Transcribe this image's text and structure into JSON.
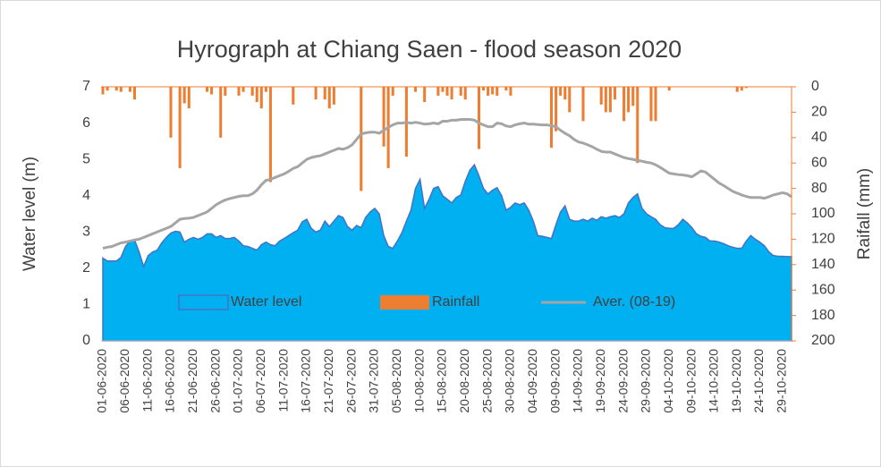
{
  "chart_data": {
    "type": "combo",
    "title": "Hyrograph at Chiang Saen - flood season 2020",
    "ylabel": "Water level (m)",
    "y2label": "Raifall (mm)",
    "categories": [
      "01-06-2020",
      null,
      null,
      null,
      null,
      "06-06-2020",
      null,
      null,
      null,
      null,
      "11-06-2020",
      null,
      null,
      null,
      null,
      "16-06-2020",
      null,
      null,
      null,
      null,
      "21-06-2020",
      null,
      null,
      null,
      null,
      "26-06-2020",
      null,
      null,
      null,
      null,
      "01-07-2020",
      null,
      null,
      null,
      null,
      "06-07-2020",
      null,
      null,
      null,
      null,
      "11-07-2020",
      null,
      null,
      null,
      null,
      "16-07-2020",
      null,
      null,
      null,
      null,
      "21-07-2020",
      null,
      null,
      null,
      null,
      "26-07-2020",
      null,
      null,
      null,
      null,
      "31-07-2020",
      null,
      null,
      null,
      null,
      "05-08-2020",
      null,
      null,
      null,
      null,
      "10-08-2020",
      null,
      null,
      null,
      null,
      "15-08-2020",
      null,
      null,
      null,
      null,
      "20-08-2020",
      null,
      null,
      null,
      null,
      "25-08-2020",
      null,
      null,
      null,
      null,
      "30-08-2020",
      null,
      null,
      null,
      null,
      "04-09-2020",
      null,
      null,
      null,
      null,
      "09-09-2020",
      null,
      null,
      null,
      null,
      "14-09-2020",
      null,
      null,
      null,
      null,
      "19-09-2020",
      null,
      null,
      null,
      null,
      "24-09-2020",
      null,
      null,
      null,
      null,
      "29-09-2020",
      null,
      null,
      null,
      null,
      "04-10-2020",
      null,
      null,
      null,
      null,
      "09-10-2020",
      null,
      null,
      null,
      null,
      "14-10-2020",
      null,
      null,
      null,
      null,
      "19-10-2020",
      null,
      null,
      null,
      null,
      "24-10-2020",
      null,
      null,
      null,
      null,
      "29-10-2020",
      null,
      null
    ],
    "series": [
      {
        "name": "Water level",
        "kind": "area",
        "color": "#00b0f0",
        "edgecolor": "#4472c4",
        "values": [
          2.28,
          2.2,
          2.2,
          2.2,
          2.3,
          2.6,
          2.75,
          2.78,
          2.45,
          2.05,
          2.35,
          2.45,
          2.5,
          2.7,
          2.85,
          2.97,
          3.02,
          3.0,
          2.72,
          2.8,
          2.85,
          2.8,
          2.85,
          2.95,
          2.95,
          2.85,
          2.9,
          2.82,
          2.82,
          2.85,
          2.75,
          2.62,
          2.6,
          2.55,
          2.5,
          2.65,
          2.72,
          2.65,
          2.62,
          2.75,
          2.82,
          2.9,
          2.98,
          3.05,
          3.28,
          3.35,
          3.1,
          3.0,
          3.05,
          3.3,
          3.15,
          3.3,
          3.45,
          3.4,
          3.15,
          3.05,
          3.18,
          3.12,
          3.4,
          3.55,
          3.65,
          3.5,
          2.9,
          2.6,
          2.55,
          2.75,
          2.98,
          3.3,
          3.6,
          4.2,
          4.45,
          3.65,
          3.9,
          4.2,
          4.25,
          4.0,
          3.9,
          3.8,
          3.95,
          4.02,
          4.4,
          4.7,
          4.85,
          4.55,
          4.2,
          4.05,
          4.15,
          4.22,
          4.0,
          3.6,
          3.68,
          3.8,
          3.75,
          3.8,
          3.6,
          3.3,
          2.9,
          2.88,
          2.85,
          2.82,
          3.2,
          3.55,
          3.72,
          3.35,
          3.3,
          3.3,
          3.35,
          3.3,
          3.38,
          3.32,
          3.42,
          3.38,
          3.42,
          3.45,
          3.4,
          3.5,
          3.8,
          3.95,
          4.05,
          3.65,
          3.5,
          3.42,
          3.35,
          3.2,
          3.12,
          3.1,
          3.1,
          3.2,
          3.35,
          3.25,
          3.12,
          2.95,
          2.88,
          2.85,
          2.75,
          2.75,
          2.72,
          2.68,
          2.62,
          2.58,
          2.55,
          2.55,
          2.75,
          2.9,
          2.8,
          2.72,
          2.62,
          2.45,
          2.35,
          2.33,
          2.33,
          2.32,
          2.32
        ]
      },
      {
        "name": "Rainfall",
        "kind": "bar",
        "axis": "y2",
        "color": "#ed7d31",
        "values": [
          6,
          3,
          0,
          3,
          4,
          0,
          4,
          10,
          0,
          0,
          0,
          0,
          0,
          0,
          0,
          40,
          0,
          64,
          13,
          17,
          0,
          0,
          0,
          4,
          6,
          0,
          40,
          7,
          0,
          0,
          7,
          4,
          0,
          7,
          12,
          17,
          4,
          75,
          0,
          0,
          0,
          0,
          14,
          0,
          0,
          0,
          0,
          10,
          0,
          10,
          17,
          14,
          0,
          0,
          0,
          0,
          0,
          82,
          0,
          0,
          0,
          0,
          47,
          64,
          7,
          0,
          0,
          55,
          0,
          4,
          0,
          12,
          0,
          0,
          7,
          4,
          7,
          10,
          0,
          7,
          10,
          0,
          0,
          49,
          3,
          7,
          6,
          7,
          0,
          3,
          7,
          0,
          0,
          0,
          0,
          0,
          0,
          0,
          0,
          48,
          35,
          7,
          10,
          20,
          0,
          0,
          27,
          0,
          0,
          0,
          14,
          20,
          20,
          10,
          0,
          27,
          20,
          15,
          60,
          0,
          0,
          27,
          27,
          0,
          0,
          3,
          0,
          0,
          0,
          0,
          0,
          0,
          0,
          0,
          0,
          0,
          0,
          0,
          0,
          0,
          4,
          3,
          1,
          0,
          0,
          0,
          0,
          0,
          0,
          0,
          0,
          0,
          0
        ]
      },
      {
        "name": "Aver. (08-19)",
        "kind": "line",
        "color": "#a5a5a5",
        "values": [
          2.55,
          2.58,
          2.6,
          2.65,
          2.7,
          2.72,
          2.75,
          2.78,
          2.8,
          2.85,
          2.9,
          2.95,
          3.0,
          3.05,
          3.1,
          3.15,
          3.25,
          3.35,
          3.37,
          3.38,
          3.4,
          3.45,
          3.5,
          3.55,
          3.65,
          3.75,
          3.82,
          3.88,
          3.92,
          3.95,
          3.98,
          4.0,
          4.0,
          4.05,
          4.15,
          4.3,
          4.42,
          4.45,
          4.5,
          4.55,
          4.6,
          4.67,
          4.75,
          4.8,
          4.9,
          5.0,
          5.05,
          5.08,
          5.1,
          5.15,
          5.2,
          5.25,
          5.3,
          5.28,
          5.32,
          5.4,
          5.55,
          5.7,
          5.73,
          5.75,
          5.75,
          5.72,
          5.8,
          5.88,
          5.95,
          6.0,
          6.0,
          6.02,
          6.0,
          6.02,
          6.0,
          5.97,
          5.98,
          6.0,
          5.98,
          6.05,
          6.05,
          6.08,
          6.08,
          6.1,
          6.1,
          6.1,
          6.08,
          6.0,
          5.95,
          5.9,
          5.9,
          6.0,
          5.98,
          5.92,
          5.9,
          5.95,
          5.98,
          6.0,
          5.97,
          5.97,
          5.96,
          5.95,
          5.95,
          5.93,
          5.9,
          5.8,
          5.72,
          5.65,
          5.55,
          5.48,
          5.45,
          5.4,
          5.35,
          5.28,
          5.22,
          5.2,
          5.2,
          5.15,
          5.1,
          5.05,
          5.02,
          5.0,
          4.97,
          4.95,
          4.92,
          4.9,
          4.85,
          4.78,
          4.7,
          4.62,
          4.6,
          4.58,
          4.57,
          4.55,
          4.52,
          4.6,
          4.68,
          4.65,
          4.55,
          4.45,
          4.35,
          4.28,
          4.2,
          4.12,
          4.07,
          4.02,
          3.98,
          3.95,
          3.95,
          3.95,
          3.93,
          3.97,
          4.02,
          4.05,
          4.08,
          4.05,
          3.97
        ]
      }
    ],
    "ylim": [
      0,
      7
    ],
    "yticks": [
      0,
      1,
      2,
      3,
      4,
      5,
      6,
      7
    ],
    "y2lim": [
      200,
      0
    ],
    "y2ticks": [
      0,
      20,
      40,
      60,
      80,
      100,
      120,
      140,
      160,
      180,
      200
    ],
    "y2color": "#ed7d31",
    "legend": "lower center"
  }
}
